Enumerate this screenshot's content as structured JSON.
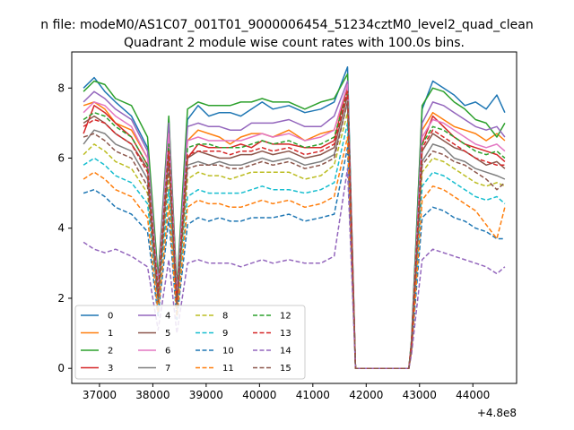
{
  "chart_data": {
    "type": "line",
    "suptitle": "n file: modeM0/AS1C07_001T01_9000006454_51234cztM0_level2_quad_clean",
    "title": "Quadrant 2 module wise count rates with 100.0s bins.",
    "xlabel": "",
    "ylabel": "",
    "x_offset_label": "+4.8e8",
    "xlim": [
      36480,
      44820
    ],
    "ylim": [
      -0.43,
      9.03
    ],
    "x_ticks": [
      37000,
      38000,
      39000,
      40000,
      41000,
      42000,
      43000,
      44000
    ],
    "y_ticks": [
      0,
      2,
      4,
      6,
      8
    ],
    "grid": false,
    "legend": {
      "placement": "bottom-left",
      "columns": 4
    },
    "series": [
      {
        "name": "0",
        "color": "#1f77b4",
        "dash": "solid",
        "values": [
          8.0,
          8.3,
          7.9,
          7.6,
          7.2,
          6.3,
          2.5,
          7.1,
          2.2,
          7.1,
          7.5,
          7.2,
          7.3,
          7.3,
          7.2,
          7.4,
          7.6,
          7.4,
          7.5,
          7.3,
          7.4,
          7.6,
          8.6,
          0,
          0,
          0,
          0,
          0,
          0,
          0.8,
          7.4,
          8.2,
          8.0,
          7.8,
          7.5,
          7.6,
          7.4,
          7.8,
          7.3
        ]
      },
      {
        "name": "1",
        "color": "#ff7f0e",
        "dash": "solid",
        "values": [
          7.5,
          7.6,
          7.4,
          7.0,
          6.8,
          6.0,
          2.1,
          6.7,
          2.0,
          6.5,
          6.8,
          6.7,
          6.6,
          6.4,
          6.6,
          6.7,
          6.7,
          6.6,
          6.8,
          6.5,
          6.7,
          6.8,
          8.0,
          0,
          0,
          0,
          0,
          0,
          0,
          0.7,
          6.8,
          7.3,
          7.1,
          6.9,
          6.8,
          6.7,
          6.5,
          6.7,
          6.5
        ]
      },
      {
        "name": "2",
        "color": "#2ca02c",
        "dash": "solid",
        "values": [
          7.9,
          8.2,
          8.1,
          7.7,
          7.5,
          6.6,
          2.6,
          7.2,
          2.3,
          7.4,
          7.6,
          7.5,
          7.5,
          7.5,
          7.6,
          7.6,
          7.7,
          7.6,
          7.6,
          7.4,
          7.6,
          7.7,
          8.4,
          0,
          0,
          0,
          0,
          0,
          0,
          0.8,
          7.5,
          8.0,
          7.9,
          7.6,
          7.4,
          7.1,
          7.0,
          6.6,
          7.0
        ]
      },
      {
        "name": "3",
        "color": "#d62728",
        "dash": "solid",
        "values": [
          6.7,
          7.5,
          7.3,
          7.0,
          6.6,
          5.8,
          2.2,
          6.4,
          1.9,
          6.0,
          6.4,
          6.3,
          6.3,
          6.3,
          6.4,
          6.3,
          6.5,
          6.4,
          6.4,
          6.3,
          6.3,
          6.5,
          8.1,
          0,
          0,
          0,
          0,
          0,
          0,
          0.7,
          6.4,
          7.2,
          6.9,
          6.6,
          6.4,
          6.3,
          6.2,
          6.1,
          5.9
        ]
      },
      {
        "name": "4",
        "color": "#9467bd",
        "dash": "solid",
        "values": [
          7.6,
          7.9,
          7.7,
          7.4,
          7.1,
          6.2,
          2.4,
          7.0,
          2.1,
          6.9,
          7.0,
          6.9,
          6.9,
          6.8,
          6.8,
          7.0,
          7.0,
          7.0,
          7.1,
          6.9,
          6.9,
          7.2,
          8.2,
          0,
          0,
          0,
          0,
          0,
          0,
          0.7,
          7.0,
          7.6,
          7.5,
          7.3,
          7.1,
          6.9,
          6.8,
          6.9,
          6.6
        ]
      },
      {
        "name": "5",
        "color": "#8c564b",
        "dash": "solid",
        "values": [
          7.0,
          7.2,
          7.0,
          6.7,
          6.4,
          5.7,
          2.1,
          6.2,
          1.8,
          6.0,
          6.2,
          6.1,
          6.0,
          6.0,
          6.1,
          6.1,
          6.2,
          6.1,
          6.2,
          6.0,
          6.1,
          6.3,
          7.8,
          0,
          0,
          0,
          0,
          0,
          0,
          0.7,
          6.2,
          6.7,
          6.5,
          6.3,
          6.2,
          6.0,
          5.8,
          5.9,
          5.7
        ]
      },
      {
        "name": "6",
        "color": "#e377c2",
        "dash": "solid",
        "values": [
          7.3,
          7.6,
          7.5,
          7.2,
          6.9,
          6.0,
          2.3,
          6.7,
          2.0,
          6.5,
          6.6,
          6.5,
          6.5,
          6.5,
          6.5,
          6.6,
          6.7,
          6.6,
          6.7,
          6.5,
          6.6,
          6.8,
          8.1,
          0,
          0,
          0,
          0,
          0,
          0,
          0.7,
          6.6,
          7.1,
          7.0,
          6.8,
          6.6,
          6.4,
          6.3,
          6.4,
          6.2
        ]
      },
      {
        "name": "7",
        "color": "#7f7f7f",
        "dash": "solid",
        "values": [
          6.4,
          6.8,
          6.7,
          6.4,
          6.2,
          5.4,
          2.0,
          6.0,
          1.8,
          5.8,
          5.9,
          5.8,
          5.9,
          5.8,
          5.8,
          5.9,
          6.0,
          5.9,
          6.0,
          5.8,
          5.9,
          6.1,
          7.6,
          0,
          0,
          0,
          0,
          0,
          0,
          0.6,
          5.9,
          6.4,
          6.3,
          6.0,
          5.9,
          5.7,
          5.6,
          5.5,
          5.4
        ]
      },
      {
        "name": "8",
        "color": "#bcbd22",
        "dash": "dashed",
        "values": [
          6.1,
          6.4,
          6.2,
          5.9,
          5.7,
          5.0,
          1.9,
          5.5,
          1.7,
          5.4,
          5.6,
          5.5,
          5.5,
          5.4,
          5.5,
          5.6,
          5.6,
          5.6,
          5.6,
          5.4,
          5.5,
          5.8,
          7.3,
          0,
          0,
          0,
          0,
          0,
          0,
          0.6,
          5.6,
          6.0,
          5.9,
          5.7,
          5.5,
          5.3,
          5.2,
          5.3,
          5.2
        ]
      },
      {
        "name": "9",
        "color": "#17becf",
        "dash": "dashed",
        "values": [
          5.8,
          6.0,
          5.8,
          5.5,
          5.3,
          4.7,
          1.8,
          5.1,
          1.6,
          4.9,
          5.1,
          5.0,
          5.0,
          5.0,
          5.0,
          5.1,
          5.2,
          5.1,
          5.1,
          5.0,
          5.1,
          5.3,
          7.0,
          0,
          0,
          0,
          0,
          0,
          0,
          0.6,
          5.2,
          5.6,
          5.5,
          5.3,
          5.1,
          4.9,
          4.8,
          4.9,
          4.7
        ]
      },
      {
        "name": "10",
        "color": "#1f77b4",
        "dash": "dashed",
        "values": [
          5.0,
          5.1,
          4.9,
          4.6,
          4.4,
          3.9,
          1.5,
          4.3,
          1.4,
          4.1,
          4.3,
          4.2,
          4.3,
          4.2,
          4.2,
          4.3,
          4.3,
          4.3,
          4.4,
          4.2,
          4.3,
          4.4,
          6.3,
          0,
          0,
          0,
          0,
          0,
          0,
          0.5,
          4.3,
          4.6,
          4.5,
          4.3,
          4.2,
          4.0,
          3.9,
          3.7,
          3.7
        ]
      },
      {
        "name": "11",
        "color": "#ff7f0e",
        "dash": "dashed",
        "values": [
          5.4,
          5.6,
          5.4,
          5.1,
          4.9,
          4.3,
          1.6,
          4.7,
          1.5,
          4.6,
          4.8,
          4.7,
          4.7,
          4.6,
          4.6,
          4.7,
          4.8,
          4.7,
          4.8,
          4.6,
          4.7,
          4.9,
          6.6,
          0,
          0,
          0,
          0,
          0,
          0,
          0.5,
          4.8,
          5.2,
          5.1,
          4.9,
          4.7,
          4.5,
          4.1,
          3.7,
          4.6
        ]
      },
      {
        "name": "12",
        "color": "#2ca02c",
        "dash": "dashed",
        "values": [
          7.1,
          7.3,
          7.2,
          6.9,
          6.6,
          5.8,
          2.2,
          6.4,
          1.9,
          6.3,
          6.4,
          6.4,
          6.3,
          6.3,
          6.3,
          6.4,
          6.5,
          6.4,
          6.5,
          6.3,
          6.4,
          6.6,
          7.9,
          0,
          0,
          0,
          0,
          0,
          0,
          0.7,
          6.4,
          6.9,
          6.8,
          6.6,
          6.4,
          6.2,
          6.1,
          6.2,
          6.0
        ]
      },
      {
        "name": "13",
        "color": "#d62728",
        "dash": "dashed",
        "values": [
          6.9,
          7.1,
          7.0,
          6.7,
          6.4,
          5.6,
          2.1,
          6.2,
          1.9,
          6.1,
          6.2,
          6.2,
          6.2,
          6.1,
          6.2,
          6.2,
          6.3,
          6.2,
          6.3,
          6.1,
          6.2,
          6.4,
          7.9,
          0,
          0,
          0,
          0,
          0,
          0,
          0.7,
          6.3,
          6.8,
          6.6,
          6.4,
          6.2,
          6.0,
          5.9,
          5.8,
          5.8
        ]
      },
      {
        "name": "14",
        "color": "#9467bd",
        "dash": "dashed",
        "values": [
          3.6,
          3.4,
          3.3,
          3.4,
          3.2,
          2.9,
          1.1,
          3.1,
          1.0,
          3.0,
          3.1,
          3.0,
          3.0,
          3.0,
          2.9,
          3.0,
          3.1,
          3.0,
          3.1,
          3.0,
          3.0,
          3.2,
          5.7,
          0,
          0,
          0,
          0,
          0,
          0,
          0.4,
          3.1,
          3.4,
          3.3,
          3.2,
          3.1,
          3.0,
          2.9,
          2.7,
          2.9
        ]
      },
      {
        "name": "15",
        "color": "#8c564b",
        "dash": "dashed",
        "values": [
          6.6,
          6.7,
          6.5,
          6.2,
          6.0,
          5.2,
          1.9,
          5.8,
          1.8,
          5.7,
          5.8,
          5.8,
          5.8,
          5.7,
          5.7,
          5.8,
          5.9,
          5.8,
          5.9,
          5.7,
          5.8,
          6.0,
          7.6,
          0,
          0,
          0,
          0,
          0,
          0,
          0.6,
          5.8,
          6.2,
          6.1,
          5.9,
          5.8,
          5.6,
          5.4,
          5.1,
          5.3
        ]
      }
    ],
    "x": [
      36700,
      36900,
      37100,
      37300,
      37600,
      37900,
      38100,
      38300,
      38450,
      38650,
      38850,
      39050,
      39250,
      39450,
      39650,
      39850,
      40050,
      40250,
      40550,
      40850,
      41150,
      41400,
      41650,
      41800,
      42000,
      42200,
      42400,
      42600,
      42800,
      42850,
      43050,
      43250,
      43450,
      43650,
      43850,
      44050,
      44250,
      44450,
      44600
    ]
  }
}
